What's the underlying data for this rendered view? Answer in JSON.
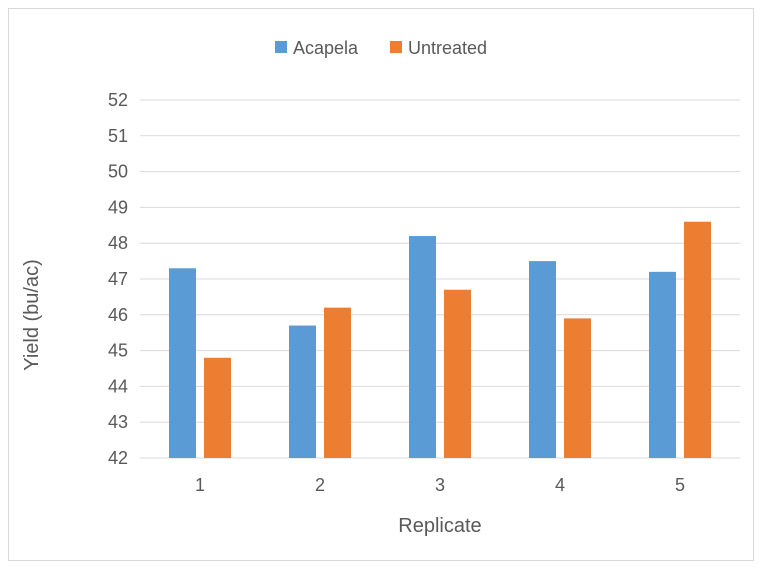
{
  "chart_data": {
    "type": "bar",
    "title": "",
    "xlabel": "Replicate",
    "ylabel": "Yield (bu/ac)",
    "categories": [
      "1",
      "2",
      "3",
      "4",
      "5"
    ],
    "series": [
      {
        "name": "Acapela",
        "color": "#5B9BD5",
        "values": [
          47.3,
          45.7,
          48.2,
          47.5,
          47.2
        ]
      },
      {
        "name": "Untreated",
        "color": "#ED7D31",
        "values": [
          44.8,
          46.2,
          46.7,
          45.9,
          48.6
        ]
      }
    ],
    "ylim": [
      42,
      52
    ],
    "yticks": [
      "42",
      "43",
      "44",
      "45",
      "46",
      "47",
      "48",
      "49",
      "50",
      "51",
      "52"
    ],
    "grid": true,
    "legend_position": "top"
  }
}
